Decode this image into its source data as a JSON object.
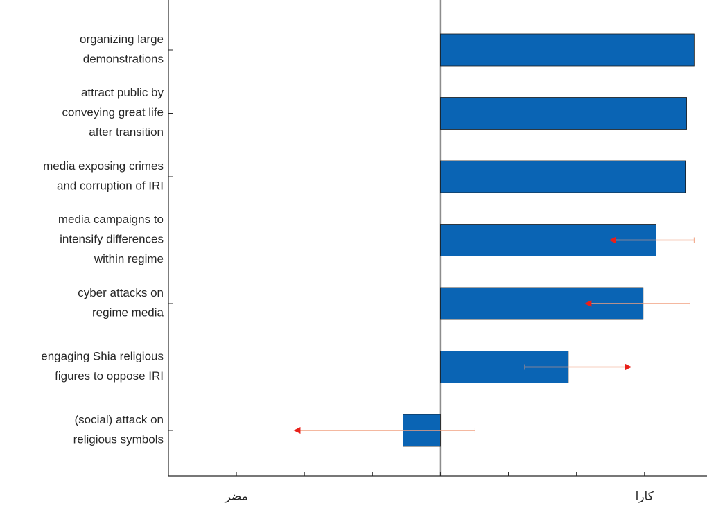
{
  "chart_data": {
    "type": "bar",
    "orientation": "horizontal",
    "categories": [
      [
        "organizing large",
        "demonstrations"
      ],
      [
        "attract public by",
        "conveying great life",
        "after transition"
      ],
      [
        "media exposing crimes",
        "and corruption of IRI"
      ],
      [
        "media campaigns to",
        "intensify differences",
        "within regime"
      ],
      [
        "cyber attacks on",
        "regime media"
      ],
      [
        "engaging Shia religious",
        "figures to oppose IRI"
      ],
      [
        "(social) attack on",
        "religious symbols"
      ]
    ],
    "values": [
      3.73,
      3.62,
      3.6,
      3.17,
      2.98,
      1.88,
      -0.55
    ],
    "color": "#0a64b4",
    "arrows": [
      null,
      null,
      null,
      [
        3.73,
        2.5
      ],
      [
        3.67,
        2.14
      ],
      [
        1.24,
        2.79
      ],
      [
        0.51,
        -2.14
      ]
    ],
    "arrow_color": "#f0a080",
    "arrowhead_color": "#e8201a",
    "xlim": [
      -4,
      3.92
    ],
    "xticks": [
      -3,
      -2,
      -1,
      0,
      1,
      2,
      3
    ],
    "xtick_labels": [
      {
        "value": -3,
        "label": "مضر"
      },
      {
        "value": 3,
        "label": "کارا"
      }
    ]
  }
}
